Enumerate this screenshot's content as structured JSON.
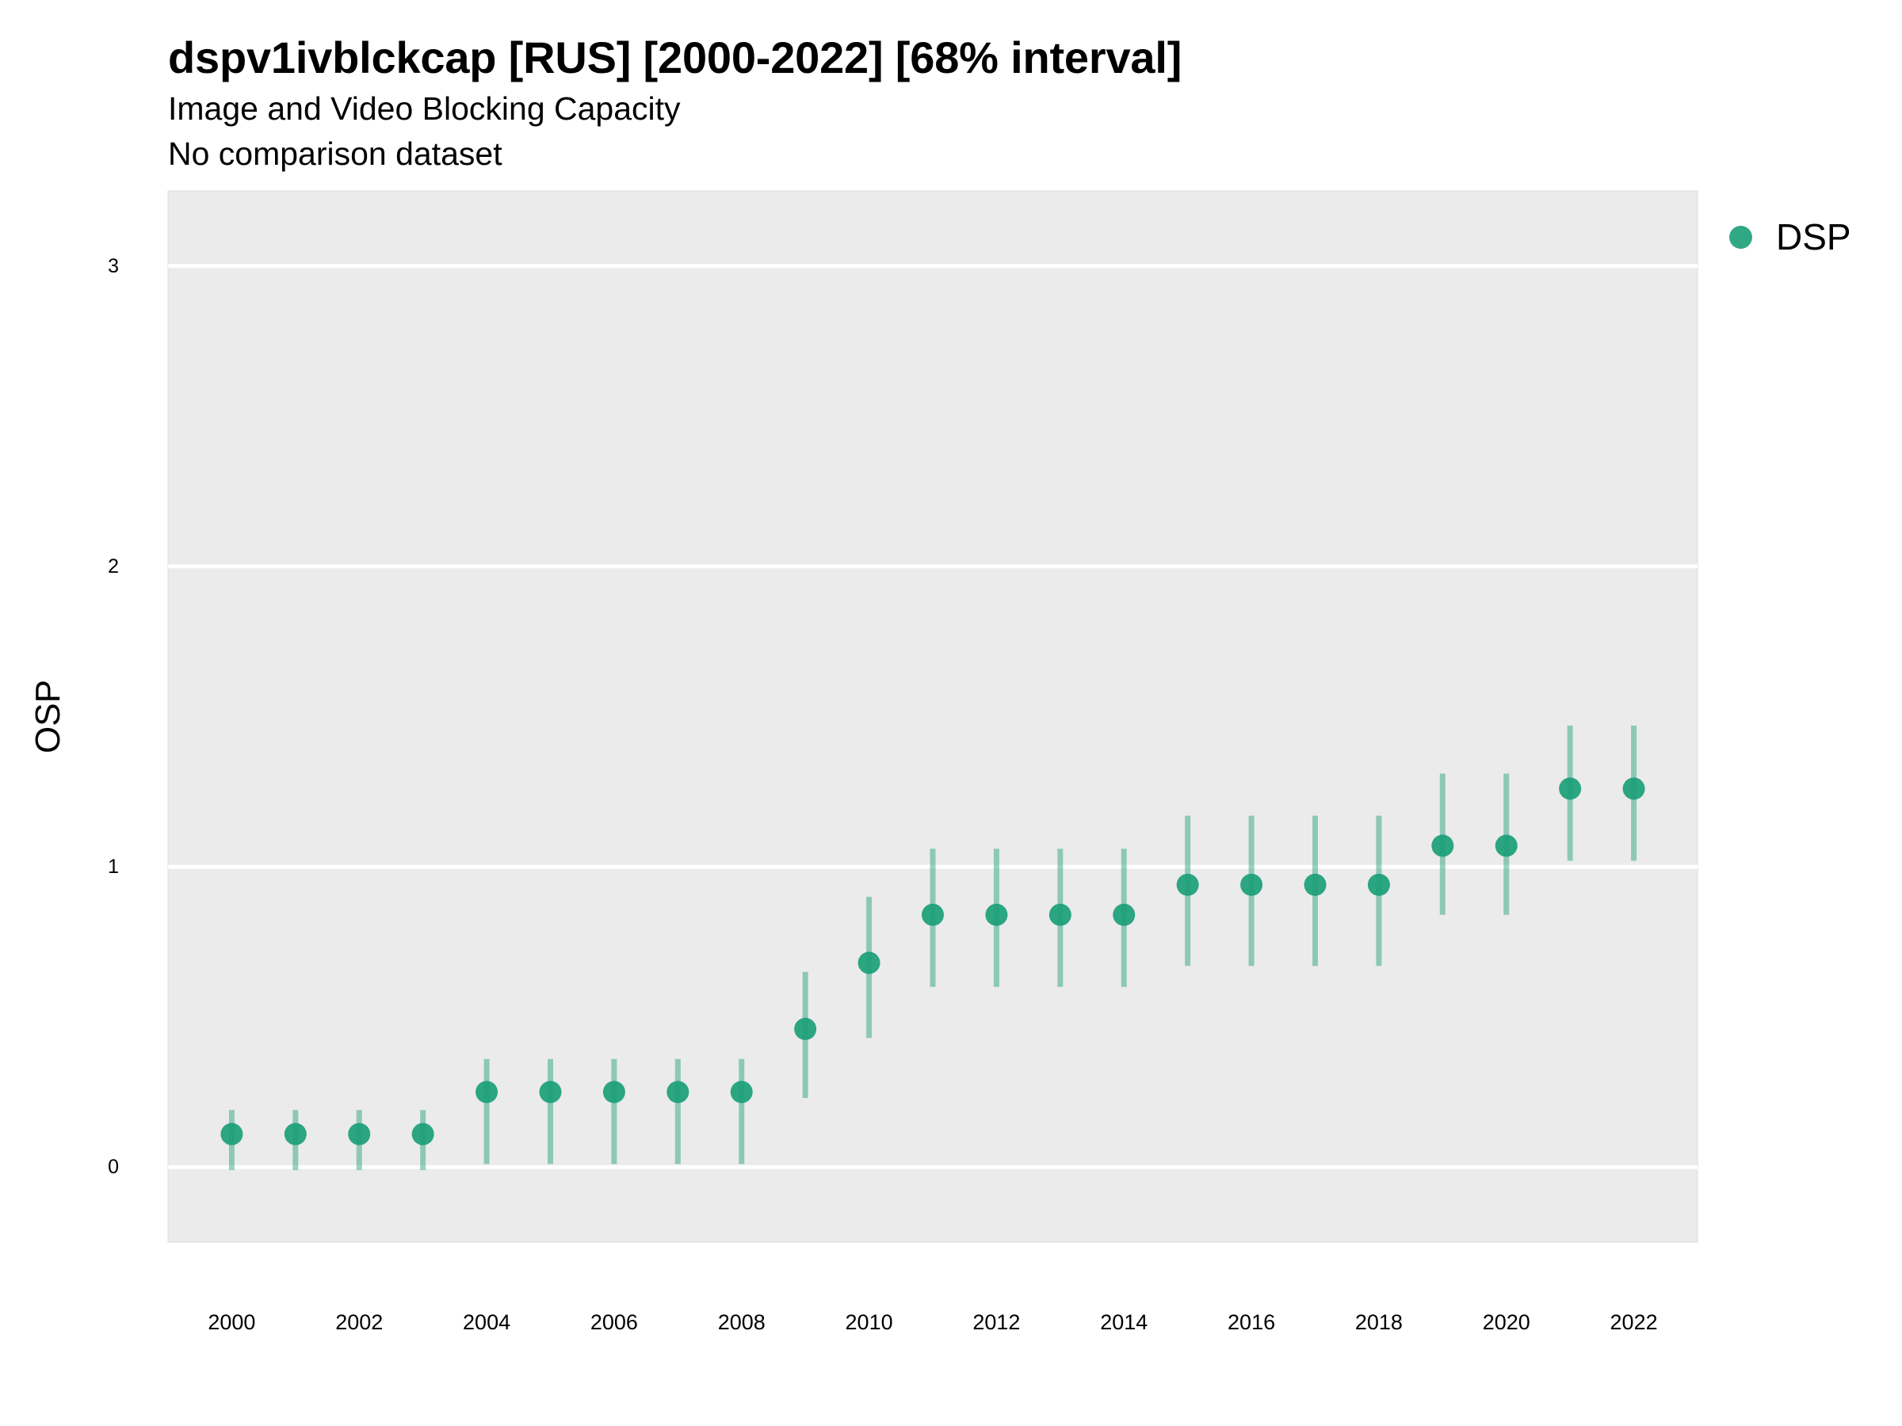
{
  "header": {
    "title": "dspv1ivblckcap [RUS] [2000-2022] [68% interval]",
    "subtitle": "Image and Video Blocking Capacity",
    "caption": "No comparison dataset"
  },
  "legend": {
    "label": "DSP",
    "color": "#1b9e77"
  },
  "colors": {
    "panel": "#ebebeb",
    "gridline": "#ffffff",
    "point": "#1b9e77",
    "interval": "#1b9e77"
  },
  "chart_data": {
    "type": "scatter",
    "title": "dspv1ivblckcap [RUS] [2000-2022] [68% interval]",
    "subtitle": "Image and Video Blocking Capacity",
    "caption": "No comparison dataset",
    "xlabel": "",
    "ylabel": "OSP",
    "xlim": [
      1999,
      2023
    ],
    "ylim": [
      -0.25,
      3.25
    ],
    "x_ticks": [
      2000,
      2002,
      2004,
      2006,
      2008,
      2010,
      2012,
      2014,
      2016,
      2018,
      2020,
      2022
    ],
    "y_ticks": [
      0,
      1,
      2,
      3
    ],
    "grid": true,
    "legend_position": "top-right",
    "series": [
      {
        "name": "DSP",
        "x": [
          2000,
          2001,
          2002,
          2003,
          2004,
          2005,
          2006,
          2007,
          2008,
          2009,
          2010,
          2011,
          2012,
          2013,
          2014,
          2015,
          2016,
          2017,
          2018,
          2019,
          2020,
          2021,
          2022
        ],
        "y": [
          0.11,
          0.11,
          0.11,
          0.11,
          0.25,
          0.25,
          0.25,
          0.25,
          0.25,
          0.46,
          0.68,
          0.84,
          0.84,
          0.84,
          0.84,
          0.94,
          0.94,
          0.94,
          0.94,
          1.07,
          1.07,
          1.26,
          1.26
        ],
        "lower": [
          -0.01,
          -0.01,
          -0.01,
          -0.01,
          0.01,
          0.01,
          0.01,
          0.01,
          0.01,
          0.23,
          0.43,
          0.6,
          0.6,
          0.6,
          0.6,
          0.67,
          0.67,
          0.67,
          0.67,
          0.84,
          0.84,
          1.02,
          1.02
        ],
        "upper": [
          0.19,
          0.19,
          0.19,
          0.19,
          0.36,
          0.36,
          0.36,
          0.36,
          0.36,
          0.65,
          0.9,
          1.06,
          1.06,
          1.06,
          1.06,
          1.17,
          1.17,
          1.17,
          1.17,
          1.31,
          1.31,
          1.47,
          1.47
        ]
      }
    ]
  }
}
